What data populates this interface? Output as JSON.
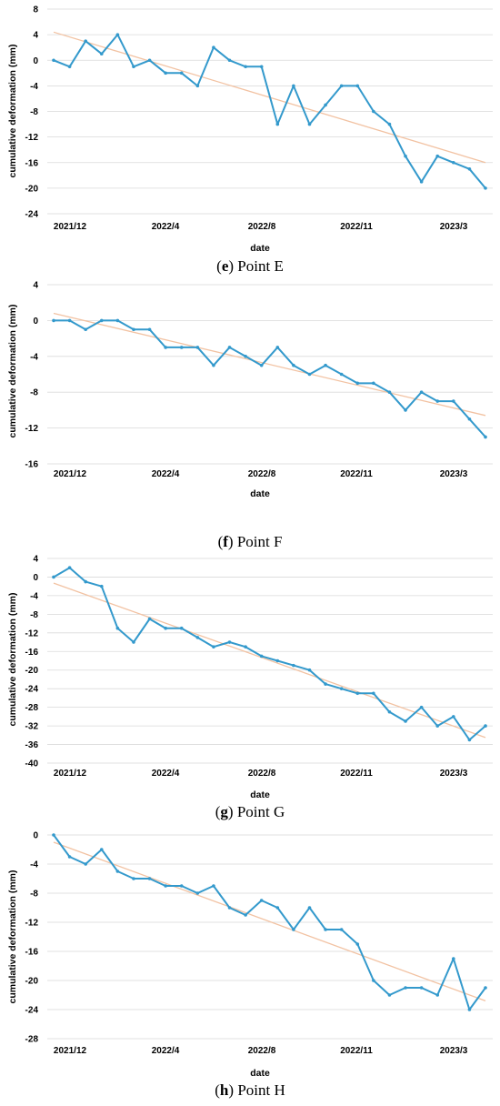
{
  "chart_data": [
    {
      "type": "line",
      "caption_letter": "e",
      "caption_text": "Point E",
      "xlabel": "date",
      "ylabel": "cumulative deformation (mm)",
      "ylim": [
        -24,
        8
      ],
      "yticks": [
        8,
        4,
        0,
        -4,
        -8,
        -12,
        -16,
        -20,
        -24
      ],
      "xtick_labels": [
        "2021/12",
        "2022/4",
        "2022/8",
        "2022/11",
        "2023/3"
      ],
      "grid": true,
      "series": [
        {
          "values": [
            0,
            -1,
            3,
            1,
            4,
            -1,
            0,
            -2,
            -2,
            -4,
            2,
            0,
            -1,
            -1,
            -10,
            -4,
            -10,
            -7,
            -4,
            -4,
            -8,
            -10,
            -15,
            -19,
            -15,
            -16,
            -17,
            -20
          ]
        }
      ],
      "trend": {
        "start": 4.4,
        "end": -16
      },
      "colors": {
        "series": "#3399cc",
        "trend": "#f2c2a2"
      }
    },
    {
      "type": "line",
      "caption_letter": "f",
      "caption_text": "Point F",
      "xlabel": "date",
      "ylabel": "cumulative deformation (mm)",
      "ylim": [
        -16,
        4
      ],
      "yticks": [
        4,
        0,
        -4,
        -8,
        -12,
        -16
      ],
      "xtick_labels": [
        "2021/12",
        "2022/4",
        "2022/8",
        "2022/11",
        "2023/3"
      ],
      "grid": true,
      "series": [
        {
          "values": [
            0,
            0,
            -1,
            0,
            0,
            -1,
            -1,
            -3,
            -3,
            -3,
            -5,
            -3,
            -4,
            -5,
            -3,
            -5,
            -6,
            -5,
            -6,
            -7,
            -7,
            -8,
            -10,
            -8,
            -9,
            -9,
            -11,
            -13
          ]
        }
      ],
      "trend": {
        "start": 0.8,
        "end": -10.6
      },
      "colors": {
        "series": "#3399cc",
        "trend": "#f2c2a2"
      }
    },
    {
      "type": "line",
      "caption_letter": "g",
      "caption_text": "Point G",
      "xlabel": "date",
      "ylabel": "cumulative deformation (mm)",
      "ylim": [
        -40,
        4
      ],
      "yticks": [
        4,
        0,
        -4,
        -8,
        -12,
        -16,
        -20,
        -24,
        -28,
        -32,
        -36,
        -40
      ],
      "xtick_labels": [
        "2021/12",
        "2022/4",
        "2022/8",
        "2022/11",
        "2023/3"
      ],
      "grid": true,
      "series": [
        {
          "values": [
            0,
            2,
            -1,
            -2,
            -11,
            -14,
            -9,
            -11,
            -11,
            -13,
            -15,
            -14,
            -15,
            -17,
            -18,
            -19,
            -20,
            -23,
            -24,
            -25,
            -25,
            -29,
            -31,
            -28,
            -32,
            -30,
            -35,
            -32
          ]
        }
      ],
      "trend": {
        "start": -1.3,
        "end": -34.5
      },
      "colors": {
        "series": "#3399cc",
        "trend": "#f2c2a2"
      }
    },
    {
      "type": "line",
      "caption_letter": "h",
      "caption_text": "Point H",
      "xlabel": "date",
      "ylabel": "cumulative deformation (mm)",
      "ylim": [
        -28,
        0
      ],
      "yticks": [
        0,
        -4,
        -8,
        -12,
        -16,
        -20,
        -24,
        -28
      ],
      "xtick_labels": [
        "2021/12",
        "2022/4",
        "2022/8",
        "2022/11",
        "2023/3"
      ],
      "grid": true,
      "series": [
        {
          "values": [
            0,
            -3,
            -4,
            -2,
            -5,
            -6,
            -6,
            -7,
            -7,
            -8,
            -7,
            -10,
            -11,
            -9,
            -10,
            -13,
            -10,
            -13,
            -13,
            -15,
            -20,
            -22,
            -21,
            -21,
            -22,
            -17,
            -24,
            -21
          ]
        }
      ],
      "trend": {
        "start": -1,
        "end": -22.8
      },
      "colors": {
        "series": "#3399cc",
        "trend": "#f2c2a2"
      }
    }
  ]
}
